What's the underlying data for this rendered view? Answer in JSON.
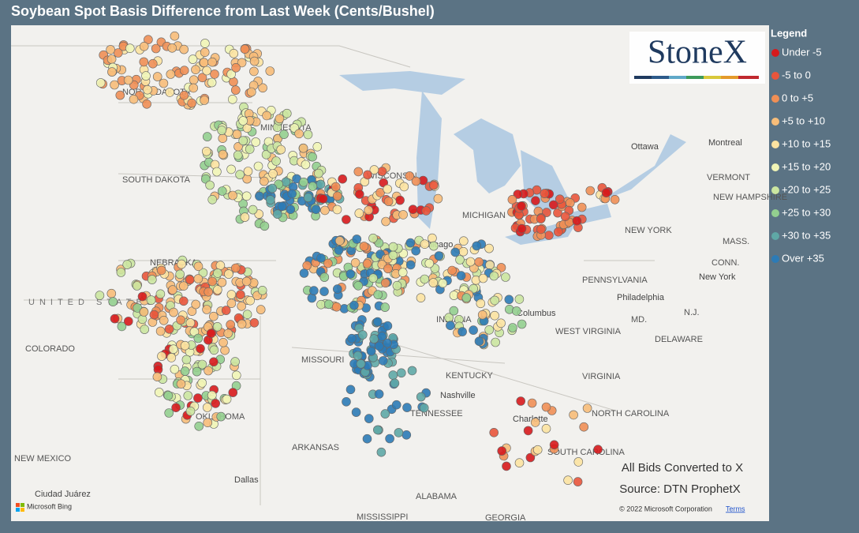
{
  "header": {
    "title": "Soybean Spot Basis Difference from Last Week (Cents/Bushel)"
  },
  "logo": "StoneX",
  "legend": {
    "title": "Legend",
    "items": [
      {
        "label": "Under -5",
        "color": "#d7191c"
      },
      {
        "label": "-5 to 0",
        "color": "#e9553b"
      },
      {
        "label": "0 to +5",
        "color": "#f08f55"
      },
      {
        "label": "+5 to +10",
        "color": "#f7bd79"
      },
      {
        "label": "+10 to +15",
        "color": "#fce3a1"
      },
      {
        "label": "+15 to +20",
        "color": "#f1f5b6"
      },
      {
        "label": "+20 to +25",
        "color": "#cbe6a0"
      },
      {
        "label": "+25 to +30",
        "color": "#93cf8f"
      },
      {
        "label": "+30 to +35",
        "color": "#5fa8a6"
      },
      {
        "label": "Over +35",
        "color": "#2c7bb6"
      }
    ]
  },
  "places": [
    "NORTH DAKOTA",
    "MINNESOTA",
    "SOUTH DAKOTA",
    "WISCONSIN",
    "NEBRASKA",
    "UNITED STATES",
    "COLORADO",
    "MISSOURI",
    "KENTUCKY",
    "TENNESSEE",
    "ARKANSAS",
    "OKLAHOMA",
    "NEW MEXICO",
    "Dallas",
    "MISSISSIPPI",
    "ALABAMA",
    "GEORGIA",
    "SOUTH CAROLINA",
    "NORTH CAROLINA",
    "Charlotte",
    "Nashville",
    "VIRGINIA",
    "WEST VIRGINIA",
    "Columbus",
    "PENNSYLVANIA",
    "Philadelphia",
    "NEW YORK",
    "New York",
    "Ottawa",
    "Montreal",
    "VERMONT",
    "NEW HAMPSHIRE",
    "MASS.",
    "CONN.",
    "MD.",
    "DELAWARE",
    "N.J.",
    "Chicago",
    "MICHIGAN",
    "INDIANA",
    "Ciudad Juárez"
  ],
  "notes": [
    "All Bids Converted to X",
    "Source: DTN ProphetX"
  ],
  "attribution": {
    "bing": "Microsoft Bing",
    "copyright": "© 2022 Microsoft Corporation",
    "terms": "Terms"
  }
}
